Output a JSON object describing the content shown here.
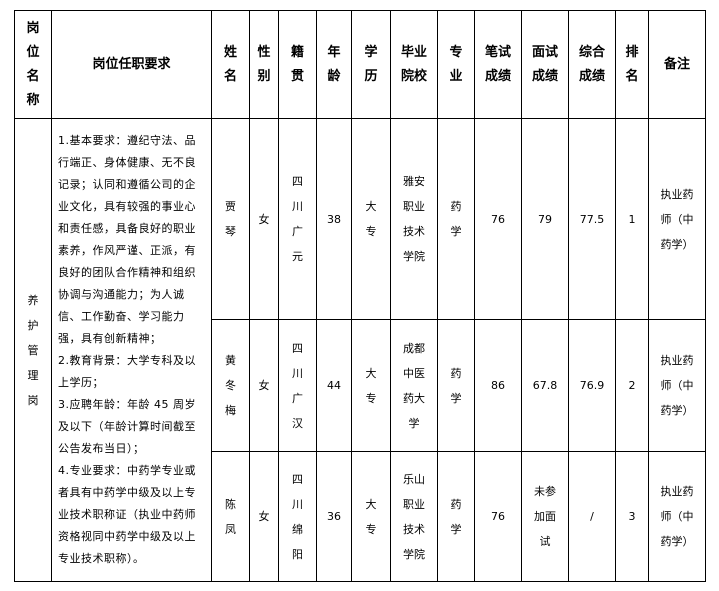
{
  "headers": [
    "岗\n位\n名\n称",
    "岗位任职要求",
    "姓\n名",
    "性\n别",
    "籍\n贯",
    "年\n龄",
    "学\n历",
    "毕业\n院校",
    "专\n业",
    "笔试\n成绩",
    "面试\n成绩",
    "综合\n成绩",
    "排\n名",
    "备注"
  ],
  "position": "养\n护\n管\n理\n岗",
  "requirements": [
    "1.基本要求：遵纪守法、品行端正、身体健康、无不良记录；认同和遵循公司的企业文化，具有较强的事业心和责任感，具备良好的职业素养，作风严谨、正派，有良好的团队合作精神和组织协调与沟通能力；为人诚信、工作勤奋、学习能力强，具有创新精神；",
    "2.教育背景：大学专科及以上学历；",
    "3.应聘年龄：年龄 45 周岁及以下（年龄计算时间截至公告发布当日）；",
    "4.专业要求：中药学专业或者具有中药学中级及以上专业技术职称证（执业中药师资格视同中药学中级及以上专业技术职称）。"
  ],
  "rows": [
    {
      "name": "贾\n琴",
      "gender": "女",
      "origin": "四\n川\n广\n元",
      "age": "38",
      "edu": "大\n专",
      "school": "雅安\n职业\n技术\n学院",
      "major": "药\n学",
      "written": "76",
      "interview": "79",
      "total": "77.5",
      "rank": "1",
      "note": "执业药\n师（中\n药学）"
    },
    {
      "name": "黄\n冬\n梅",
      "gender": "女",
      "origin": "四\n川\n广\n汉",
      "age": "44",
      "edu": "大\n专",
      "school": "成都\n中医\n药大\n学",
      "major": "药\n学",
      "written": "86",
      "interview": "67.8",
      "total": "76.9",
      "rank": "2",
      "note": "执业药\n师（中\n药学）"
    },
    {
      "name": "陈\n凤",
      "gender": "女",
      "origin": "四\n川\n绵\n阳",
      "age": "36",
      "edu": "大\n专",
      "school": "乐山\n职业\n技术\n学院",
      "major": "药\n学",
      "written": "76",
      "interview": "未参\n加面\n试",
      "total": "/",
      "rank": "3",
      "note": "执业药\n师（中\n药学）"
    }
  ]
}
